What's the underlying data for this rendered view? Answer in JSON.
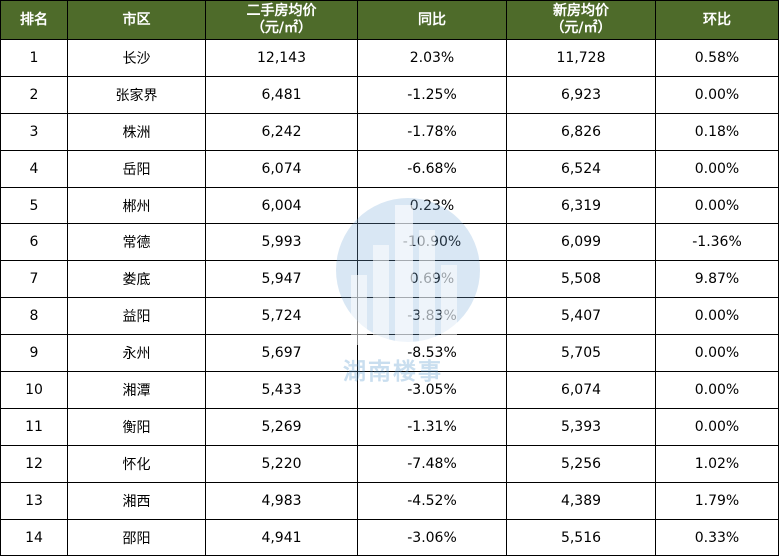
{
  "headers": {
    "rank": "排名",
    "city": "市区",
    "second_hand_price": "二手房均价",
    "second_hand_unit": "（元/㎡）",
    "yoy": "同比",
    "new_price": "新房均价",
    "new_unit": "（元/㎡）",
    "mom": "环比"
  },
  "rows": [
    {
      "rank": "1",
      "city": "长沙",
      "second": "12,143",
      "yoy": "2.03%",
      "new": "11,728",
      "mom": "0.58%"
    },
    {
      "rank": "2",
      "city": "张家界",
      "second": "6,481",
      "yoy": "-1.25%",
      "new": "6,923",
      "mom": "0.00%"
    },
    {
      "rank": "3",
      "city": "株洲",
      "second": "6,242",
      "yoy": "-1.78%",
      "new": "6,826",
      "mom": "0.18%"
    },
    {
      "rank": "4",
      "city": "岳阳",
      "second": "6,074",
      "yoy": "-6.68%",
      "new": "6,524",
      "mom": "0.00%"
    },
    {
      "rank": "5",
      "city": "郴州",
      "second": "6,004",
      "yoy": "0.23%",
      "new": "6,319",
      "mom": "0.00%"
    },
    {
      "rank": "6",
      "city": "常德",
      "second": "5,993",
      "yoy": "-10.90%",
      "new": "6,099",
      "mom": "-1.36%"
    },
    {
      "rank": "7",
      "city": "娄底",
      "second": "5,947",
      "yoy": "0.69%",
      "new": "5,508",
      "mom": "9.87%"
    },
    {
      "rank": "8",
      "city": "益阳",
      "second": "5,724",
      "yoy": "-3.83%",
      "new": "5,407",
      "mom": "0.00%"
    },
    {
      "rank": "9",
      "city": "永州",
      "second": "5,697",
      "yoy": "-8.53%",
      "new": "5,705",
      "mom": "0.00%"
    },
    {
      "rank": "10",
      "city": "湘潭",
      "second": "5,433",
      "yoy": "-3.05%",
      "new": "6,074",
      "mom": "0.00%"
    },
    {
      "rank": "11",
      "city": "衡阳",
      "second": "5,269",
      "yoy": "-1.31%",
      "new": "5,393",
      "mom": "0.00%"
    },
    {
      "rank": "12",
      "city": "怀化",
      "second": "5,220",
      "yoy": "-7.48%",
      "new": "5,256",
      "mom": "1.02%"
    },
    {
      "rank": "13",
      "city": "湘西",
      "second": "4,983",
      "yoy": "-4.52%",
      "new": "4,389",
      "mom": "1.79%"
    },
    {
      "rank": "14",
      "city": "邵阳",
      "second": "4,941",
      "yoy": "-3.06%",
      "new": "5,516",
      "mom": "0.33%"
    }
  ],
  "watermark": {
    "text": "湖南楼事",
    "color": "#64a0d2"
  },
  "colors": {
    "header_bg": "#4e6b2a",
    "header_text": "#ffffff"
  }
}
